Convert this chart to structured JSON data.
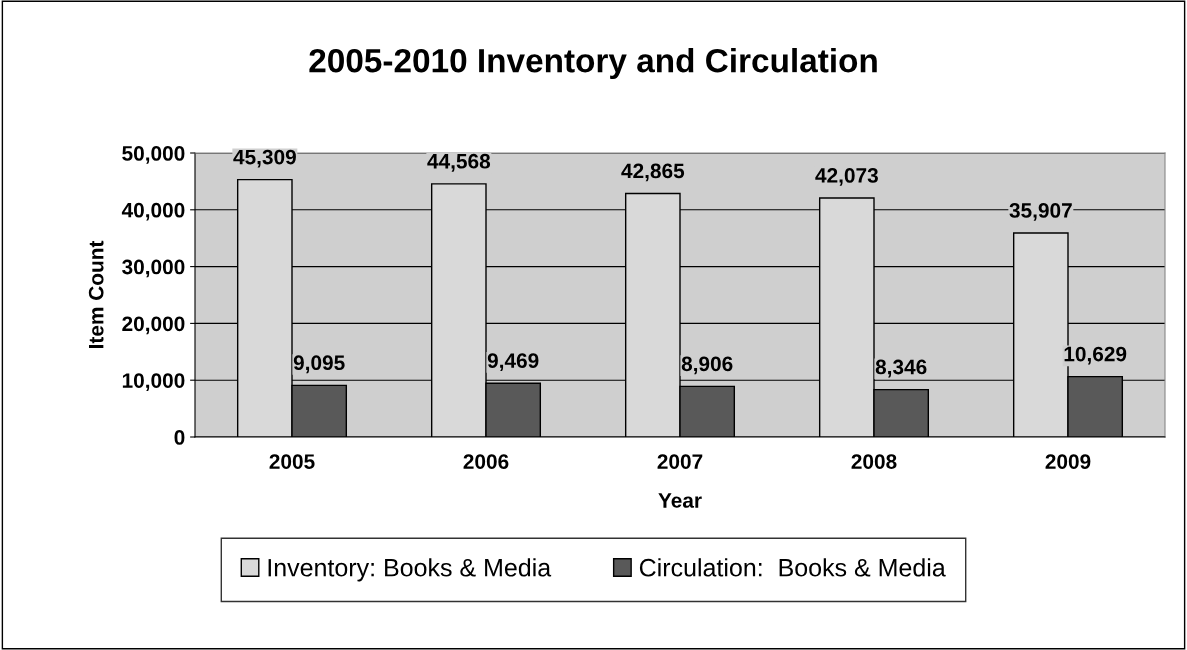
{
  "chart_data": {
    "type": "bar",
    "title": "2005-2010 Inventory and Circulation",
    "xlabel": "Year",
    "ylabel": "Item Count",
    "categories": [
      "2005",
      "2006",
      "2007",
      "2008",
      "2009"
    ],
    "series": [
      {
        "name": "Inventory: Books & Media",
        "color": "#d9d9d9",
        "values": [
          45309,
          44568,
          42865,
          42073,
          35907
        ],
        "value_labels": [
          "45,309",
          "44,568",
          "42,865",
          "42,073",
          "35,907"
        ]
      },
      {
        "name": "Circulation:  Books & Media",
        "color": "#595959",
        "values": [
          9095,
          9469,
          8906,
          8346,
          10629
        ],
        "value_labels": [
          "9,095",
          "9,469",
          "8,906",
          "8,346",
          "10,629"
        ]
      }
    ],
    "ylim": [
      0,
      50000
    ],
    "yticks": [
      {
        "value": 0,
        "label": "0"
      },
      {
        "value": 10000,
        "label": "10,000"
      },
      {
        "value": 20000,
        "label": "20,000"
      },
      {
        "value": 30000,
        "label": "30,000"
      },
      {
        "value": 40000,
        "label": "40,000"
      },
      {
        "value": 50000,
        "label": "50,000"
      }
    ],
    "grid": "y",
    "legend": "bottom"
  }
}
